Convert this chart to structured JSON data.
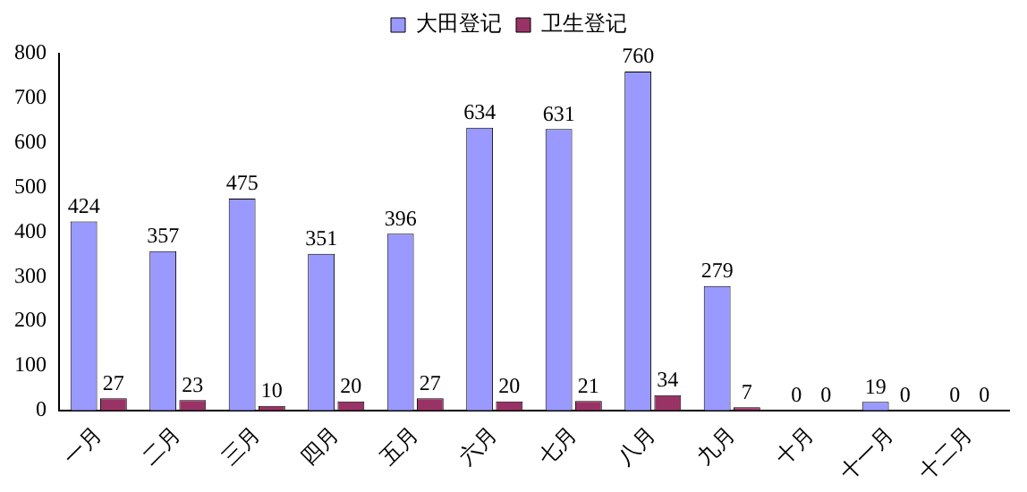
{
  "chart_data": {
    "type": "bar",
    "categories": [
      "一月",
      "二月",
      "三月",
      "四月",
      "五月",
      "六月",
      "七月",
      "八月",
      "九月",
      "十月",
      "十一月",
      "十二月"
    ],
    "series": [
      {
        "name": "大田登记",
        "color": "#9999ff",
        "values": [
          424,
          357,
          475,
          351,
          396,
          634,
          631,
          760,
          279,
          0,
          19,
          0
        ]
      },
      {
        "name": "卫生登记",
        "color": "#993366",
        "values": [
          27,
          23,
          10,
          20,
          27,
          20,
          21,
          34,
          7,
          0,
          0,
          0
        ]
      }
    ],
    "ylim": [
      0,
      800
    ],
    "yticks": [
      0,
      100,
      200,
      300,
      400,
      500,
      600,
      700,
      800
    ],
    "grid": false,
    "legend": "top",
    "data_labels": true
  }
}
